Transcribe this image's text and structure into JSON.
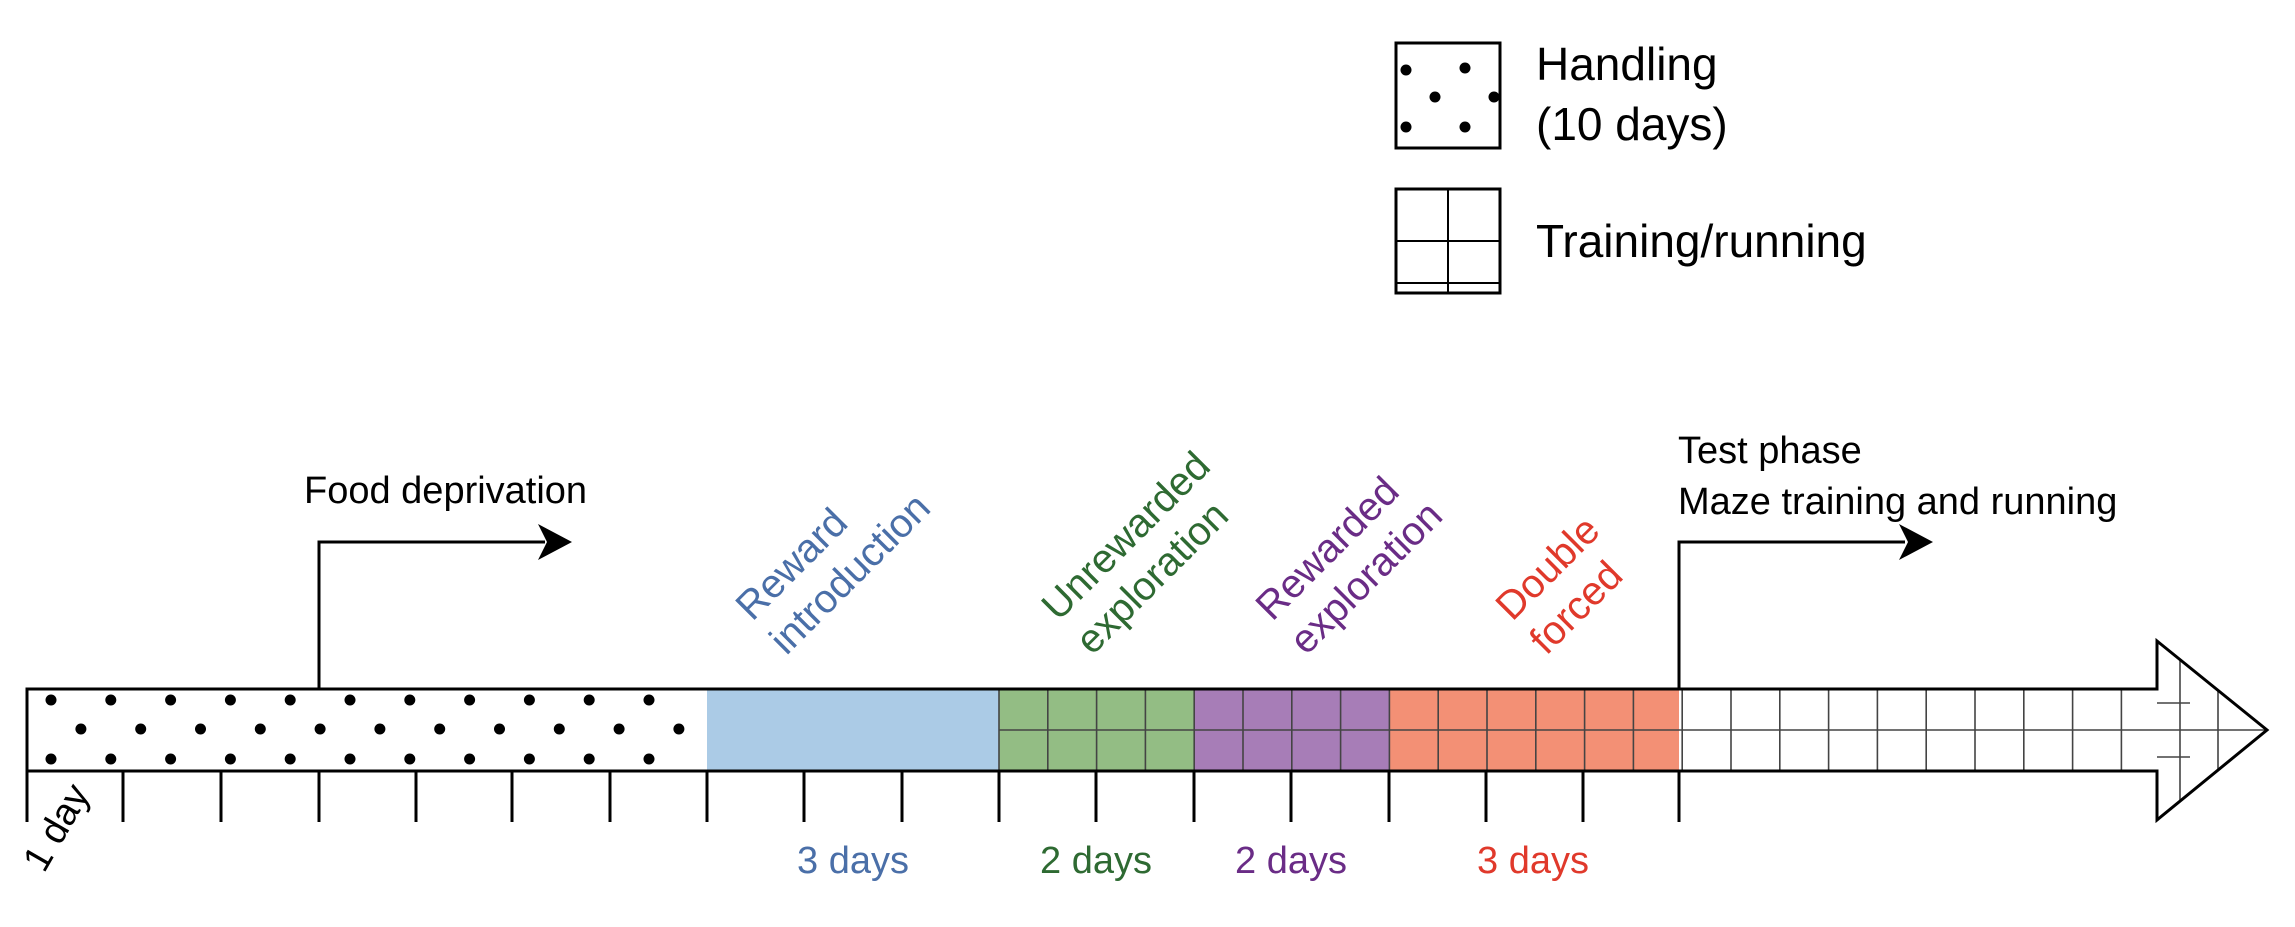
{
  "legend": {
    "handling_line1": "Handling",
    "handling_line2": "(10 days)",
    "training": "Training/running"
  },
  "annotations": {
    "food_deprivation": "Food deprivation",
    "test_phase_line1": "Test phase",
    "test_phase_line2": "Maze training and running",
    "one_day": "1 day"
  },
  "phases": {
    "reward_introduction": {
      "line1": "Reward",
      "line2": "introduction",
      "duration": "3 days",
      "color": "#4a6fa8",
      "fill": "#abcbe6"
    },
    "unrewarded_exploration": {
      "line1": "Unrewarded",
      "line2": "exploration",
      "duration": "2 days",
      "color": "#2e6a32",
      "fill": "#93bd84"
    },
    "rewarded_exploration": {
      "line1": "Rewarded",
      "line2": "exploration",
      "duration": "2 days",
      "color": "#6a2c86",
      "fill": "#a77db7"
    },
    "double_forced": {
      "line1": "Double",
      "line2": "forced",
      "duration": "3 days",
      "color": "#e0392b",
      "fill": "#f39075"
    }
  }
}
